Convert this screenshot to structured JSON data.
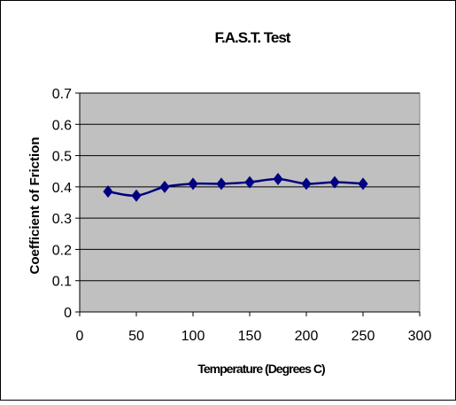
{
  "chart_data": {
    "type": "line",
    "title": "F.A.S.T. Test",
    "xlabel": "Temperature (Degrees C)",
    "ylabel": "Coefficient of Friction",
    "xlim": [
      0,
      300
    ],
    "ylim": [
      0,
      0.7
    ],
    "x_ticks": [
      "0",
      "50",
      "100",
      "150",
      "200",
      "250",
      "300"
    ],
    "y_ticks": [
      "0",
      "0.1",
      "0.2",
      "0.3",
      "0.4",
      "0.5",
      "0.6",
      "0.7"
    ],
    "grid": "horizontal",
    "legend": "none",
    "series": [
      {
        "x": [
          25,
          50,
          75,
          100,
          125,
          150,
          175,
          200,
          225,
          250
        ],
        "y": [
          0.385,
          0.372,
          0.4,
          0.41,
          0.41,
          0.415,
          0.425,
          0.41,
          0.415,
          0.41
        ]
      }
    ],
    "colors": {
      "plot_background": "#c0c0c0",
      "line": "#000080",
      "marker": "#000080",
      "grid": "#000000"
    }
  }
}
